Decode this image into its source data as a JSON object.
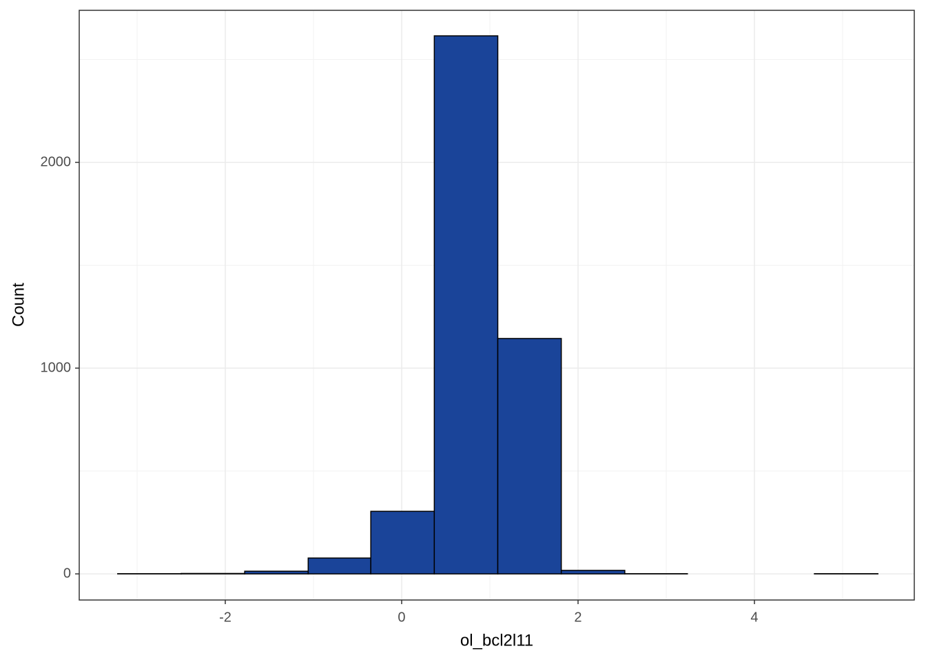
{
  "chart_data": {
    "type": "histogram",
    "x_label": "ol_bcl2l11",
    "y_label": "Count",
    "bins": [
      -3.22,
      -2.5,
      -1.78,
      -1.06,
      -0.35,
      0.37,
      1.09,
      1.81,
      2.53,
      3.24,
      3.96,
      4.68,
      5.4
    ],
    "counts": [
      1,
      2,
      13,
      77,
      304,
      2615,
      1144,
      17,
      1,
      0,
      0,
      1
    ],
    "color": "#1a4499",
    "xlim": [
      -3.656,
      5.8125
    ],
    "ylim": [
      -127,
      2739
    ],
    "xticks": [
      -2,
      0,
      2,
      4
    ],
    "yticks": [
      0,
      1000,
      2000
    ],
    "x_minor_grid": [
      -3,
      -1,
      1,
      3,
      5
    ],
    "y_minor_grid": [
      500,
      1500,
      2500
    ],
    "grid": true
  }
}
